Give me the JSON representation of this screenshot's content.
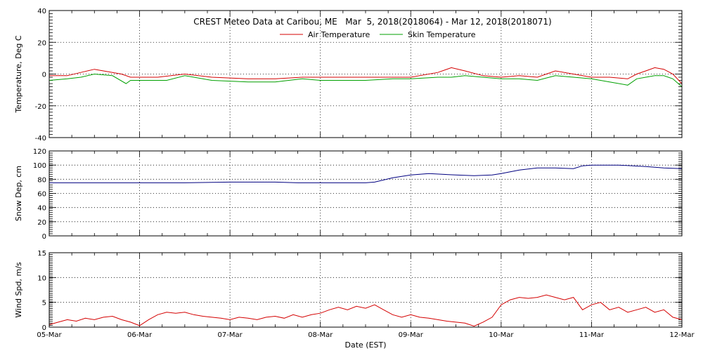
{
  "chart_data": {
    "type": "line",
    "title": "CREST Meteo Data at Caribou, ME   Mar  5, 2018(2018064) - Mar 12, 2018(2018071)",
    "xlabel": "Date (EST)",
    "x_ticks": [
      "05-Mar",
      "06-Mar",
      "07-Mar",
      "08-Mar",
      "09-Mar",
      "10-Mar",
      "11-Mar",
      "12-Mar"
    ],
    "xlim_days": [
      0,
      7
    ],
    "grid": true,
    "panels": [
      {
        "id": "temperature",
        "ylabel": "Temperature, Deg C",
        "ylim": [
          -40,
          40
        ],
        "yticks": [
          -40,
          -20,
          0,
          20,
          40
        ],
        "legend": [
          "Air Temperature",
          "Skin Temperature"
        ],
        "series": [
          {
            "name": "Air Temperature",
            "color": "#d40000",
            "x": [
              0,
              0.2,
              0.35,
              0.5,
              0.6,
              0.8,
              0.9,
              1.0,
              1.2,
              1.5,
              1.8,
              2.2,
              2.5,
              2.8,
              3.0,
              3.3,
              3.5,
              3.8,
              4.0,
              4.3,
              4.45,
              4.6,
              4.8,
              5.0,
              5.2,
              5.4,
              5.6,
              5.8,
              6.0,
              6.2,
              6.4,
              6.5,
              6.6,
              6.7,
              6.8,
              6.9,
              7.0
            ],
            "y": [
              -1,
              -1,
              1,
              3,
              2,
              0,
              -2,
              -2,
              -2,
              0,
              -2,
              -3,
              -3,
              -2,
              -2,
              -2,
              -2,
              -2,
              -2,
              1,
              4,
              2,
              -1,
              -2,
              -1,
              -2,
              2,
              0,
              -2,
              -2,
              -3,
              0,
              2,
              4,
              3,
              0,
              -6
            ]
          },
          {
            "name": "Skin Temperature",
            "color": "#00a000",
            "x": [
              0,
              0.2,
              0.35,
              0.5,
              0.7,
              0.85,
              0.9,
              1.0,
              1.3,
              1.5,
              1.8,
              2.2,
              2.5,
              2.8,
              3.0,
              3.3,
              3.5,
              3.8,
              4.0,
              4.3,
              4.45,
              4.6,
              4.8,
              5.0,
              5.2,
              5.4,
              5.6,
              5.8,
              6.0,
              6.2,
              6.4,
              6.5,
              6.6,
              6.7,
              6.8,
              6.9,
              7.0
            ],
            "y": [
              -4,
              -3,
              -2,
              0,
              -1,
              -6,
              -4,
              -4,
              -4,
              -1,
              -4,
              -5,
              -5,
              -3,
              -4,
              -4,
              -4,
              -3,
              -3,
              -2,
              -2,
              -1,
              -2,
              -3,
              -3,
              -4,
              -1,
              -2,
              -3,
              -5,
              -7,
              -3,
              -2,
              -1,
              -1,
              -3,
              -8
            ]
          }
        ]
      },
      {
        "id": "snow_depth",
        "ylabel": "Snow Dep, cm",
        "ylim": [
          0,
          120
        ],
        "yticks": [
          0,
          20,
          40,
          60,
          80,
          100,
          120
        ],
        "series": [
          {
            "name": "Snow Depth",
            "color": "#000080",
            "x": [
              0,
              0.5,
              1.0,
              1.5,
              2.0,
              2.5,
              2.75,
              3.0,
              3.5,
              3.6,
              3.8,
              4.0,
              4.2,
              4.5,
              4.7,
              4.9,
              5.0,
              5.2,
              5.4,
              5.6,
              5.8,
              5.9,
              6.0,
              6.3,
              6.6,
              6.8,
              7.0
            ],
            "y": [
              75,
              75,
              75,
              75,
              76,
              76,
              75,
              75,
              75,
              76,
              82,
              86,
              88,
              86,
              85,
              86,
              88,
              93,
              96,
              96,
              95,
              99,
              100,
              100,
              98,
              96,
              95
            ]
          }
        ]
      },
      {
        "id": "wind_speed",
        "ylabel": "Wind Spd, m/s",
        "ylim": [
          0,
          15
        ],
        "yticks": [
          0,
          5,
          10,
          15
        ],
        "series": [
          {
            "name": "Wind Speed",
            "color": "#d40000",
            "x": [
              0,
              0.1,
              0.2,
              0.3,
              0.4,
              0.5,
              0.6,
              0.7,
              0.8,
              0.9,
              1.0,
              1.1,
              1.2,
              1.3,
              1.4,
              1.5,
              1.6,
              1.7,
              1.8,
              1.9,
              2.0,
              2.1,
              2.2,
              2.3,
              2.4,
              2.5,
              2.6,
              2.7,
              2.8,
              2.9,
              3.0,
              3.1,
              3.2,
              3.3,
              3.4,
              3.5,
              3.6,
              3.7,
              3.8,
              3.9,
              4.0,
              4.1,
              4.2,
              4.3,
              4.4,
              4.5,
              4.6,
              4.7,
              4.8,
              4.9,
              5.0,
              5.1,
              5.2,
              5.3,
              5.4,
              5.5,
              5.6,
              5.7,
              5.8,
              5.9,
              6.0,
              6.1,
              6.2,
              6.3,
              6.4,
              6.5,
              6.6,
              6.7,
              6.8,
              6.9,
              7.0
            ],
            "y": [
              0.5,
              1,
              1.5,
              1.2,
              1.8,
              1.5,
              2,
              2.2,
              1.5,
              1,
              0.3,
              1.5,
              2.5,
              3,
              2.8,
              3,
              2.5,
              2.2,
              2,
              1.8,
              1.5,
              2,
              1.8,
              1.5,
              2,
              2.2,
              1.8,
              2.5,
              2,
              2.5,
              2.8,
              3.5,
              4,
              3.5,
              4.2,
              3.8,
              4.5,
              3.5,
              2.5,
              2,
              2.5,
              2,
              1.8,
              1.5,
              1.2,
              1,
              0.8,
              0.2,
              1,
              2,
              4.5,
              5.5,
              6,
              5.8,
              6,
              6.5,
              6,
              5.5,
              6,
              3.5,
              4.5,
              5,
              3.5,
              4,
              3,
              3.5,
              4,
              3,
              3.5,
              2,
              1.5
            ]
          }
        ]
      }
    ]
  }
}
